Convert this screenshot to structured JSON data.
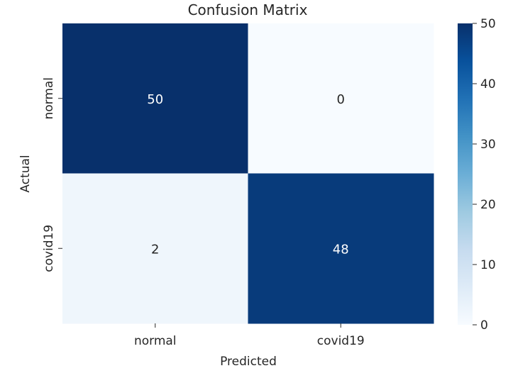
{
  "chart_data": {
    "type": "heatmap",
    "title": "Confusion Matrix",
    "xlabel": "Predicted",
    "ylabel": "Actual",
    "x_categories": [
      "normal",
      "covid19"
    ],
    "y_categories": [
      "normal",
      "covid19"
    ],
    "matrix": [
      [
        50,
        0
      ],
      [
        2,
        48
      ]
    ],
    "colorbar": {
      "range": [
        0,
        50
      ],
      "ticks": [
        "0",
        "10",
        "20",
        "30",
        "40",
        "50"
      ]
    },
    "colormap": "Blues",
    "colors": {
      "low": "#f7fbff",
      "high": "#08306b"
    },
    "annotation_colors": {
      "dark": "#ffffff",
      "light": "#262626"
    }
  }
}
